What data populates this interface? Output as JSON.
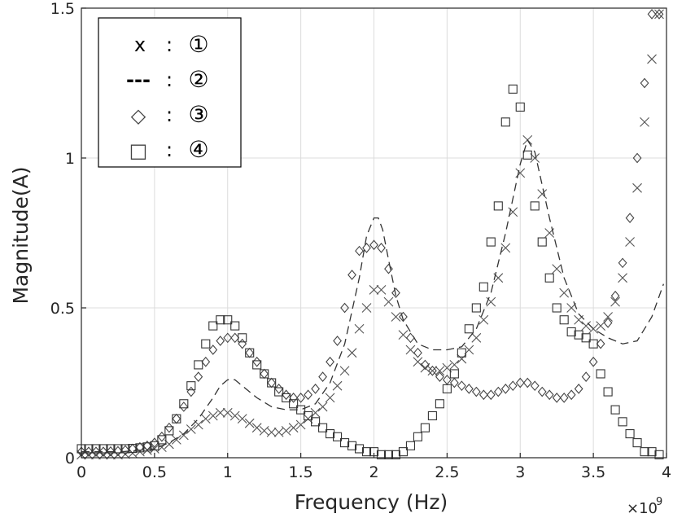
{
  "chart_data": {
    "type": "scatter",
    "xlabel": "Frequency (Hz)",
    "ylabel": "Magnitude(A)",
    "x_exponent_label": "×10",
    "x_exponent_power": "9",
    "xlim": [
      0,
      4
    ],
    "ylim": [
      0,
      1.5
    ],
    "x_ticks": [
      "0",
      "0.5",
      "1",
      "1.5",
      "2",
      "2.5",
      "3",
      "3.5",
      "4"
    ],
    "x_tick_values": [
      0,
      0.5,
      1,
      1.5,
      2,
      2.5,
      3,
      3.5,
      4
    ],
    "y_ticks": [
      "0",
      "0.5",
      "1",
      "1.5"
    ],
    "y_tick_values": [
      0,
      0.5,
      1,
      1.5
    ],
    "grid": true,
    "legend_position": "top-left",
    "legend": [
      {
        "symbol": "x",
        "marker": "x",
        "sep": ":",
        "label": "①"
      },
      {
        "symbol": "---",
        "marker": "dash",
        "sep": ":",
        "label": "②"
      },
      {
        "symbol": "◇",
        "marker": "diamond",
        "sep": ":",
        "label": "③"
      },
      {
        "symbol": "□",
        "marker": "square",
        "sep": ":",
        "label": "④"
      }
    ],
    "series": [
      {
        "name": "①",
        "marker": "x",
        "x": [
          0.0,
          0.05,
          0.1,
          0.15,
          0.2,
          0.25,
          0.3,
          0.35,
          0.4,
          0.45,
          0.5,
          0.55,
          0.6,
          0.65,
          0.7,
          0.75,
          0.8,
          0.85,
          0.9,
          0.95,
          1.0,
          1.05,
          1.1,
          1.15,
          1.2,
          1.25,
          1.3,
          1.35,
          1.4,
          1.45,
          1.5,
          1.55,
          1.6,
          1.65,
          1.7,
          1.75,
          1.8,
          1.85,
          1.9,
          1.95,
          2.0,
          2.05,
          2.1,
          2.15,
          2.2,
          2.25,
          2.3,
          2.35,
          2.4,
          2.45,
          2.5,
          2.55,
          2.6,
          2.65,
          2.7,
          2.75,
          2.8,
          2.85,
          2.9,
          2.95,
          3.0,
          3.05,
          3.1,
          3.15,
          3.2,
          3.25,
          3.3,
          3.35,
          3.4,
          3.45,
          3.5,
          3.55,
          3.6,
          3.65,
          3.7,
          3.75,
          3.8,
          3.85,
          3.9,
          3.95
        ],
        "y": [
          0.01,
          0.01,
          0.01,
          0.01,
          0.01,
          0.01,
          0.012,
          0.015,
          0.02,
          0.025,
          0.03,
          0.035,
          0.045,
          0.06,
          0.075,
          0.095,
          0.11,
          0.13,
          0.14,
          0.15,
          0.15,
          0.14,
          0.13,
          0.115,
          0.1,
          0.09,
          0.085,
          0.085,
          0.09,
          0.1,
          0.11,
          0.13,
          0.15,
          0.17,
          0.2,
          0.24,
          0.29,
          0.35,
          0.43,
          0.5,
          0.56,
          0.56,
          0.52,
          0.47,
          0.41,
          0.36,
          0.32,
          0.3,
          0.29,
          0.29,
          0.3,
          0.31,
          0.33,
          0.36,
          0.4,
          0.46,
          0.52,
          0.6,
          0.7,
          0.82,
          0.95,
          1.06,
          1.0,
          0.88,
          0.75,
          0.63,
          0.55,
          0.5,
          0.46,
          0.44,
          0.43,
          0.44,
          0.47,
          0.52,
          0.6,
          0.72,
          0.9,
          1.12,
          1.33,
          1.48
        ]
      },
      {
        "name": "②",
        "marker": "dash",
        "x": [
          0.0,
          0.1,
          0.2,
          0.3,
          0.4,
          0.5,
          0.6,
          0.7,
          0.8,
          0.9,
          0.95,
          1.0,
          1.05,
          1.1,
          1.2,
          1.3,
          1.4,
          1.5,
          1.6,
          1.7,
          1.8,
          1.9,
          1.95,
          2.0,
          2.03,
          2.06,
          2.1,
          2.15,
          2.2,
          2.3,
          2.4,
          2.5,
          2.6,
          2.7,
          2.8,
          2.9,
          3.0,
          3.05,
          3.1,
          3.2,
          3.3,
          3.4,
          3.5,
          3.6,
          3.7,
          3.8,
          3.9,
          3.98
        ],
        "y": [
          0.02,
          0.02,
          0.02,
          0.021,
          0.025,
          0.03,
          0.05,
          0.08,
          0.13,
          0.2,
          0.24,
          0.26,
          0.26,
          0.24,
          0.2,
          0.17,
          0.16,
          0.16,
          0.18,
          0.25,
          0.38,
          0.6,
          0.74,
          0.8,
          0.8,
          0.76,
          0.66,
          0.54,
          0.46,
          0.38,
          0.36,
          0.36,
          0.37,
          0.43,
          0.55,
          0.75,
          0.98,
          1.06,
          1.02,
          0.8,
          0.6,
          0.48,
          0.43,
          0.4,
          0.38,
          0.39,
          0.47,
          0.58
        ]
      },
      {
        "name": "③",
        "marker": "diamond",
        "x": [
          0.0,
          0.05,
          0.1,
          0.15,
          0.2,
          0.25,
          0.3,
          0.35,
          0.4,
          0.45,
          0.5,
          0.55,
          0.6,
          0.65,
          0.7,
          0.75,
          0.8,
          0.85,
          0.9,
          0.95,
          1.0,
          1.05,
          1.1,
          1.15,
          1.2,
          1.25,
          1.3,
          1.35,
          1.4,
          1.45,
          1.5,
          1.55,
          1.6,
          1.65,
          1.7,
          1.75,
          1.8,
          1.85,
          1.9,
          1.95,
          2.0,
          2.05,
          2.1,
          2.15,
          2.2,
          2.25,
          2.3,
          2.35,
          2.4,
          2.45,
          2.5,
          2.55,
          2.6,
          2.65,
          2.7,
          2.75,
          2.8,
          2.85,
          2.9,
          2.95,
          3.0,
          3.05,
          3.1,
          3.15,
          3.2,
          3.25,
          3.3,
          3.35,
          3.4,
          3.45,
          3.5,
          3.55,
          3.6,
          3.65,
          3.7,
          3.75,
          3.8,
          3.85,
          3.9,
          3.95
        ],
        "y": [
          0.02,
          0.02,
          0.02,
          0.02,
          0.021,
          0.022,
          0.025,
          0.03,
          0.035,
          0.04,
          0.05,
          0.07,
          0.1,
          0.13,
          0.17,
          0.22,
          0.27,
          0.32,
          0.36,
          0.39,
          0.4,
          0.4,
          0.38,
          0.35,
          0.32,
          0.28,
          0.25,
          0.23,
          0.21,
          0.2,
          0.2,
          0.21,
          0.23,
          0.27,
          0.32,
          0.39,
          0.5,
          0.61,
          0.69,
          0.7,
          0.71,
          0.7,
          0.63,
          0.55,
          0.47,
          0.4,
          0.35,
          0.31,
          0.29,
          0.27,
          0.26,
          0.25,
          0.24,
          0.23,
          0.22,
          0.21,
          0.21,
          0.22,
          0.23,
          0.24,
          0.25,
          0.25,
          0.24,
          0.22,
          0.21,
          0.2,
          0.2,
          0.21,
          0.23,
          0.27,
          0.32,
          0.38,
          0.45,
          0.54,
          0.65,
          0.8,
          1.0,
          1.25,
          1.48,
          1.48
        ]
      },
      {
        "name": "④",
        "marker": "square",
        "x": [
          0.0,
          0.05,
          0.1,
          0.15,
          0.2,
          0.25,
          0.3,
          0.35,
          0.4,
          0.45,
          0.5,
          0.55,
          0.6,
          0.65,
          0.7,
          0.75,
          0.8,
          0.85,
          0.9,
          0.95,
          1.0,
          1.05,
          1.1,
          1.15,
          1.2,
          1.25,
          1.3,
          1.35,
          1.4,
          1.45,
          1.5,
          1.55,
          1.6,
          1.65,
          1.7,
          1.75,
          1.8,
          1.85,
          1.9,
          1.95,
          2.0,
          2.05,
          2.1,
          2.15,
          2.2,
          2.25,
          2.3,
          2.35,
          2.4,
          2.45,
          2.5,
          2.55,
          2.6,
          2.65,
          2.7,
          2.75,
          2.8,
          2.85,
          2.9,
          2.95,
          3.0,
          3.05,
          3.1,
          3.15,
          3.2,
          3.25,
          3.3,
          3.35,
          3.4,
          3.45,
          3.5,
          3.55,
          3.6,
          3.65,
          3.7,
          3.75,
          3.8,
          3.85,
          3.9,
          3.95
        ],
        "y": [
          0.03,
          0.03,
          0.03,
          0.03,
          0.03,
          0.03,
          0.03,
          0.031,
          0.033,
          0.036,
          0.04,
          0.06,
          0.09,
          0.13,
          0.18,
          0.24,
          0.31,
          0.38,
          0.44,
          0.46,
          0.46,
          0.44,
          0.4,
          0.35,
          0.31,
          0.28,
          0.25,
          0.22,
          0.2,
          0.18,
          0.16,
          0.14,
          0.12,
          0.1,
          0.08,
          0.07,
          0.05,
          0.04,
          0.03,
          0.02,
          0.02,
          0.01,
          0.01,
          0.01,
          0.02,
          0.04,
          0.07,
          0.1,
          0.14,
          0.18,
          0.23,
          0.28,
          0.35,
          0.43,
          0.5,
          0.57,
          0.72,
          0.84,
          1.12,
          1.23,
          1.17,
          1.01,
          0.84,
          0.72,
          0.6,
          0.5,
          0.46,
          0.42,
          0.41,
          0.4,
          0.38,
          0.28,
          0.22,
          0.16,
          0.12,
          0.08,
          0.05,
          0.02,
          0.02,
          0.01
        ]
      }
    ]
  }
}
